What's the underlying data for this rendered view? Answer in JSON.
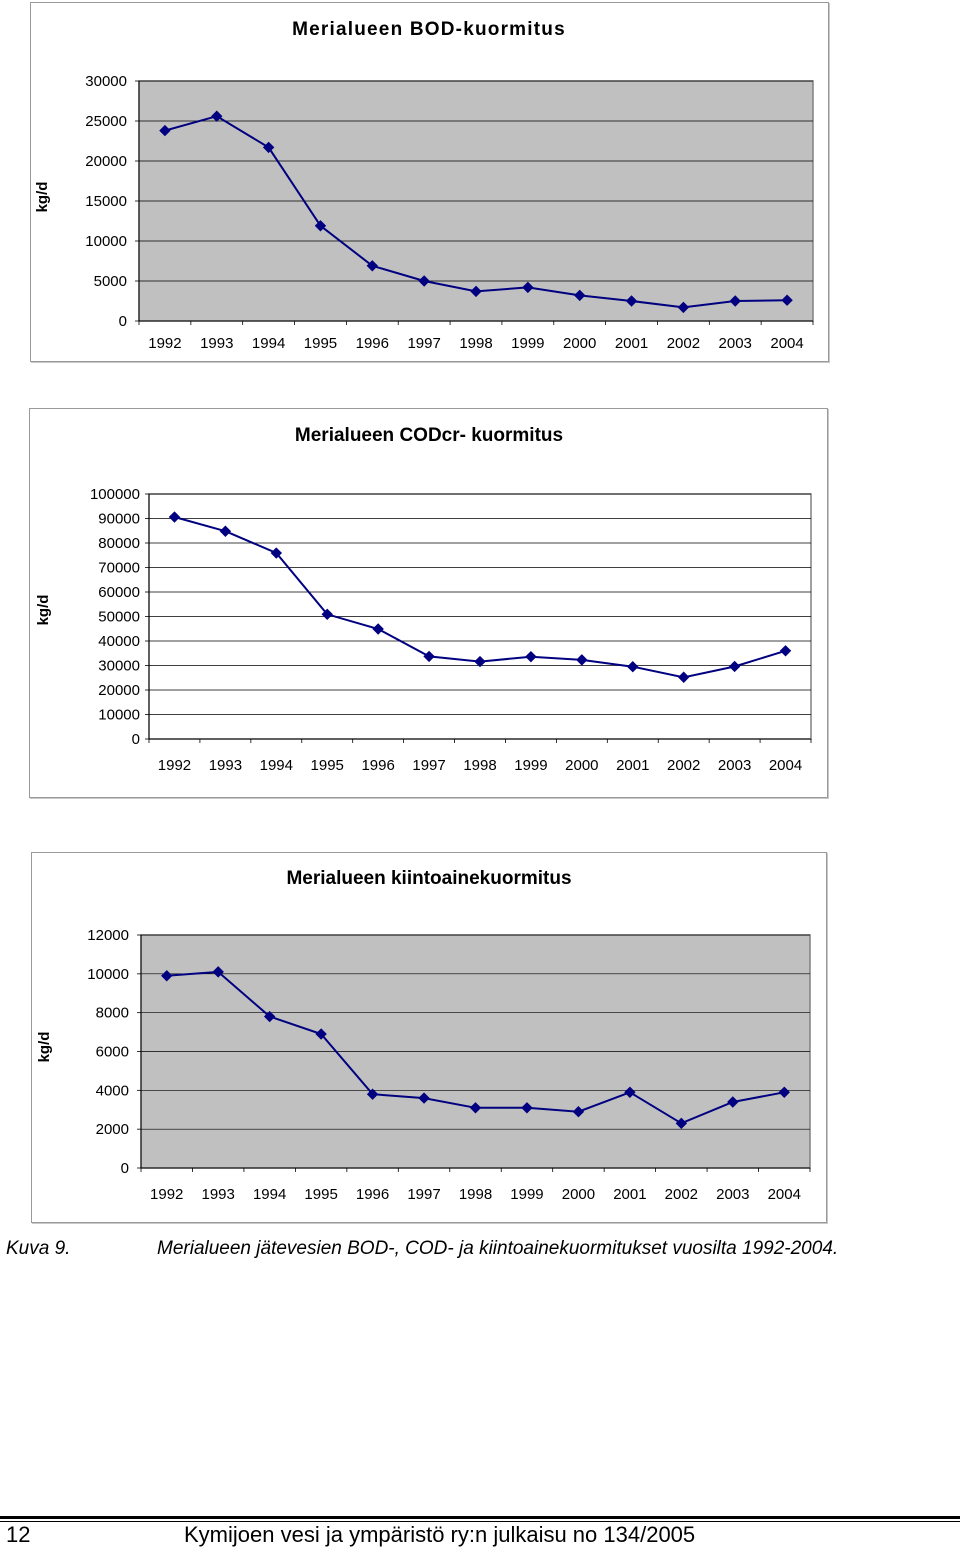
{
  "chart_data": [
    {
      "type": "line",
      "title": "Merialueen BOD-kuormitus",
      "ylabel": "kg/d",
      "xlabel": "",
      "categories": [
        "1992",
        "1993",
        "1994",
        "1995",
        "1996",
        "1997",
        "1998",
        "1999",
        "2000",
        "2001",
        "2002",
        "2003",
        "2004"
      ],
      "values": [
        23800,
        25600,
        21700,
        11900,
        6900,
        5000,
        3700,
        4200,
        3200,
        2500,
        1700,
        2500,
        2600
      ],
      "ylim": [
        0,
        30000
      ],
      "yticks": [
        0,
        5000,
        10000,
        15000,
        20000,
        25000,
        30000
      ],
      "grid": true,
      "legend": "none",
      "colors": {
        "line": "#000080",
        "plot_bg": "#c0c0c0",
        "grid": "#000000"
      }
    },
    {
      "type": "line",
      "title": "Merialueen CODcr- kuormitus",
      "ylabel": "kg/d",
      "xlabel": "",
      "categories": [
        "1992",
        "1993",
        "1994",
        "1995",
        "1996",
        "1997",
        "1998",
        "1999",
        "2000",
        "2001",
        "2002",
        "2003",
        "2004"
      ],
      "values": [
        90600,
        84800,
        75900,
        50900,
        44900,
        33700,
        31600,
        33600,
        32300,
        29500,
        25200,
        29600,
        36000
      ],
      "ylim": [
        0,
        100000
      ],
      "yticks": [
        0,
        10000,
        20000,
        30000,
        40000,
        50000,
        60000,
        70000,
        80000,
        90000,
        100000
      ],
      "grid": true,
      "legend": "none",
      "colors": {
        "line": "#000080",
        "plot_bg": "#ffffff",
        "grid": "#000000"
      }
    },
    {
      "type": "line",
      "title": "Merialueen kiintoainekuormitus",
      "ylabel": "kg/d",
      "xlabel": "",
      "categories": [
        "1992",
        "1993",
        "1994",
        "1995",
        "1996",
        "1997",
        "1998",
        "1999",
        "2000",
        "2001",
        "2002",
        "2003",
        "2004"
      ],
      "values": [
        9900,
        10100,
        7800,
        6900,
        3800,
        3600,
        3100,
        3100,
        2900,
        3900,
        2300,
        3400,
        3900
      ],
      "ylim": [
        0,
        12000
      ],
      "yticks": [
        0,
        2000,
        4000,
        6000,
        8000,
        10000,
        12000
      ],
      "grid": true,
      "legend": "none",
      "colors": {
        "line": "#000080",
        "plot_bg": "#c0c0c0",
        "grid": "#000000"
      }
    }
  ],
  "caption": {
    "label": "Kuva 9.",
    "text": "Merialueen jätevesien BOD-, COD- ja kiintoainekuormitukset vuosilta 1992-2004."
  },
  "footer": {
    "page_number": "12",
    "publication": "Kymijoen vesi ja ympäristö ry:n julkaisu no 134/2005"
  }
}
